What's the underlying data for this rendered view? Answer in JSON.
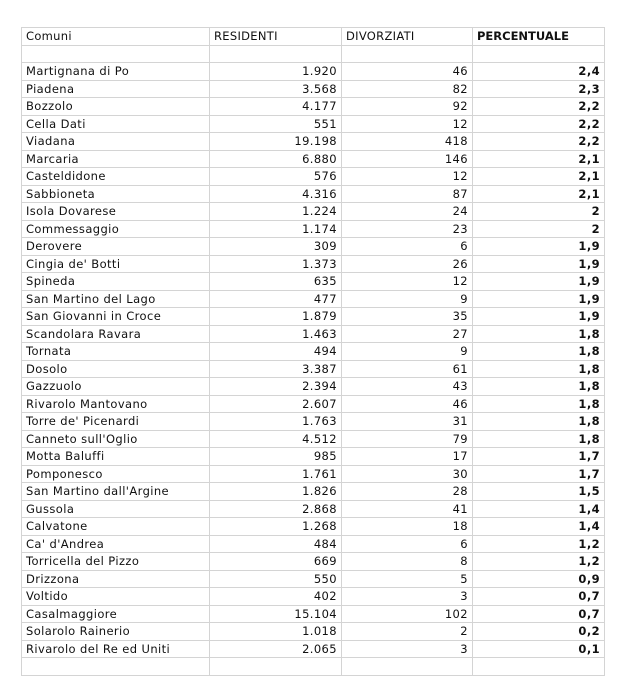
{
  "headers": [
    "Comuni",
    "RESIDENTI",
    "DIVORZIATI",
    "PERCENTUALE"
  ],
  "rows": [
    [
      "Martignana di Po",
      "1.920",
      "46",
      "2,4"
    ],
    [
      "Piadena",
      "3.568",
      "82",
      "2,3"
    ],
    [
      "Bozzolo",
      "4.177",
      "92",
      "2,2"
    ],
    [
      "Cella Dati",
      "551",
      "12",
      "2,2"
    ],
    [
      "Viadana",
      "19.198",
      "418",
      "2,2"
    ],
    [
      "Marcaria",
      "6.880",
      "146",
      "2,1"
    ],
    [
      "Casteldidone",
      "576",
      "12",
      "2,1"
    ],
    [
      "Sabbioneta",
      "4.316",
      "87",
      "2,1"
    ],
    [
      "Isola Dovarese",
      "1.224",
      "24",
      "2"
    ],
    [
      "Commessaggio",
      "1.174",
      "23",
      "2"
    ],
    [
      "Derovere",
      "309",
      "6",
      "1,9"
    ],
    [
      "Cingia de' Botti",
      "1.373",
      "26",
      "1,9"
    ],
    [
      "Spineda",
      "635",
      "12",
      "1,9"
    ],
    [
      "San Martino del Lago",
      "477",
      "9",
      "1,9"
    ],
    [
      "San Giovanni in Croce",
      "1.879",
      "35",
      "1,9"
    ],
    [
      "Scandolara Ravara",
      "1.463",
      "27",
      "1,8"
    ],
    [
      "Tornata",
      "494",
      "9",
      "1,8"
    ],
    [
      "Dosolo",
      "3.387",
      "61",
      "1,8"
    ],
    [
      "Gazzuolo",
      "2.394",
      "43",
      "1,8"
    ],
    [
      "Rivarolo Mantovano",
      "2.607",
      "46",
      "1,8"
    ],
    [
      "Torre de' Picenardi",
      "1.763",
      "31",
      "1,8"
    ],
    [
      "Canneto sull'Oglio",
      "4.512",
      "79",
      "1,8"
    ],
    [
      "Motta Baluffi",
      "985",
      "17",
      "1,7"
    ],
    [
      "Pomponesco",
      "1.761",
      "30",
      "1,7"
    ],
    [
      "San Martino dall'Argine",
      "1.826",
      "28",
      "1,5"
    ],
    [
      "Gussola",
      "2.868",
      "41",
      "1,4"
    ],
    [
      "Calvatone",
      "1.268",
      "18",
      "1,4"
    ],
    [
      "Ca' d'Andrea",
      "484",
      "6",
      "1,2"
    ],
    [
      "Torricella del Pizzo",
      "669",
      "8",
      "1,2"
    ],
    [
      "Drizzona",
      "550",
      "5",
      "0,9"
    ],
    [
      "Voltido",
      "402",
      "3",
      "0,7"
    ],
    [
      "Casalmaggiore",
      "15.104",
      "102",
      "0,7"
    ],
    [
      "Solarolo Rainerio",
      "1.018",
      "2",
      "0,2"
    ],
    [
      "Rivarolo del Re ed Uniti",
      "2.065",
      "3",
      "0,1"
    ]
  ]
}
